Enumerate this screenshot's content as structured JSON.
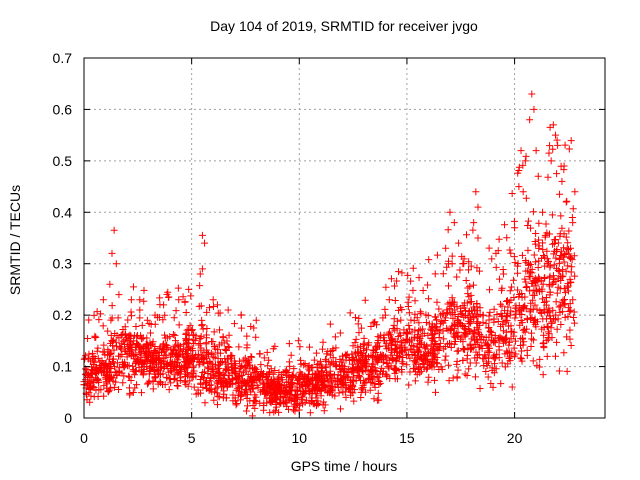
{
  "chart_data": {
    "type": "scatter",
    "title": "Day 104 of 2019, SRMTID for receiver jvgo",
    "xlabel": "GPS time / hours",
    "ylabel": "SRMTID / TECUs",
    "xlim": [
      0,
      24.2
    ],
    "ylim": [
      0,
      0.7
    ],
    "grid": true,
    "marker": "+",
    "series_color": "#ff0000",
    "xticks": [
      0,
      5,
      10,
      15,
      20
    ],
    "xtick_labels": [
      "0",
      "5",
      "10",
      "15",
      "20"
    ],
    "yticks": [
      0,
      0.1,
      0.2,
      0.3,
      0.4,
      0.5,
      0.6,
      0.7
    ],
    "ytick_labels": [
      "0",
      "0.1",
      "0.2",
      "0.3",
      "0.4",
      "0.5",
      "0.6",
      "0.7"
    ],
    "envelope": {
      "description": "typical value range (low, high) of the dense point cloud at each hour",
      "hours": [
        0,
        1,
        2,
        3,
        4,
        5,
        6,
        7,
        8,
        9,
        10,
        11,
        12,
        13,
        14,
        15,
        16,
        17,
        18,
        19,
        20,
        21,
        22,
        22.8
      ],
      "low": [
        0.03,
        0.03,
        0.05,
        0.05,
        0.05,
        0.05,
        0.02,
        0.02,
        0.02,
        0.01,
        0.02,
        0.02,
        0.03,
        0.04,
        0.05,
        0.08,
        0.06,
        0.07,
        0.07,
        0.05,
        0.08,
        0.08,
        0.1,
        0.1
      ],
      "high": [
        0.13,
        0.15,
        0.2,
        0.17,
        0.18,
        0.19,
        0.16,
        0.14,
        0.12,
        0.1,
        0.11,
        0.12,
        0.14,
        0.16,
        0.18,
        0.22,
        0.22,
        0.26,
        0.28,
        0.22,
        0.33,
        0.4,
        0.42,
        0.38
      ]
    },
    "peaks": [
      {
        "x": 1.4,
        "y": 0.365
      },
      {
        "x": 1.3,
        "y": 0.32
      },
      {
        "x": 1.5,
        "y": 0.3
      },
      {
        "x": 1.2,
        "y": 0.26
      },
      {
        "x": 2.3,
        "y": 0.255
      },
      {
        "x": 2.2,
        "y": 0.23
      },
      {
        "x": 4.4,
        "y": 0.23
      },
      {
        "x": 5.5,
        "y": 0.355
      },
      {
        "x": 5.6,
        "y": 0.34
      },
      {
        "x": 5.5,
        "y": 0.29
      },
      {
        "x": 5.4,
        "y": 0.28
      },
      {
        "x": 6.0,
        "y": 0.23
      },
      {
        "x": 6.2,
        "y": 0.22
      },
      {
        "x": 7.3,
        "y": 0.2
      },
      {
        "x": 14.0,
        "y": 0.2
      },
      {
        "x": 14.4,
        "y": 0.18
      },
      {
        "x": 15.1,
        "y": 0.235
      },
      {
        "x": 17.0,
        "y": 0.4
      },
      {
        "x": 17.2,
        "y": 0.38
      },
      {
        "x": 17.4,
        "y": 0.34
      },
      {
        "x": 17.1,
        "y": 0.3
      },
      {
        "x": 18.2,
        "y": 0.44
      },
      {
        "x": 18.3,
        "y": 0.41
      },
      {
        "x": 18.1,
        "y": 0.38
      },
      {
        "x": 18.3,
        "y": 0.35
      },
      {
        "x": 20.0,
        "y": 0.37
      },
      {
        "x": 20.2,
        "y": 0.45
      },
      {
        "x": 20.3,
        "y": 0.52
      },
      {
        "x": 20.5,
        "y": 0.5
      },
      {
        "x": 20.8,
        "y": 0.63
      },
      {
        "x": 20.9,
        "y": 0.6
      },
      {
        "x": 20.7,
        "y": 0.58
      },
      {
        "x": 21.0,
        "y": 0.52
      },
      {
        "x": 21.1,
        "y": 0.47
      },
      {
        "x": 21.8,
        "y": 0.57
      },
      {
        "x": 21.9,
        "y": 0.55
      },
      {
        "x": 22.0,
        "y": 0.53
      },
      {
        "x": 21.7,
        "y": 0.5
      },
      {
        "x": 22.3,
        "y": 0.49
      },
      {
        "x": 22.2,
        "y": 0.46
      },
      {
        "x": 22.4,
        "y": 0.42
      },
      {
        "x": 22.8,
        "y": 0.44
      },
      {
        "x": 22.7,
        "y": 0.38
      },
      {
        "x": 22.6,
        "y": 0.33
      },
      {
        "x": 21.5,
        "y": 0.36
      },
      {
        "x": 21.3,
        "y": 0.4
      },
      {
        "x": 20.4,
        "y": 0.44
      },
      {
        "x": 16.8,
        "y": 0.33
      },
      {
        "x": 17.6,
        "y": 0.3
      },
      {
        "x": 19.3,
        "y": 0.27
      },
      {
        "x": 8.0,
        "y": 0.19
      },
      {
        "x": 3.3,
        "y": 0.2
      },
      {
        "x": 0.9,
        "y": 0.23
      }
    ]
  }
}
